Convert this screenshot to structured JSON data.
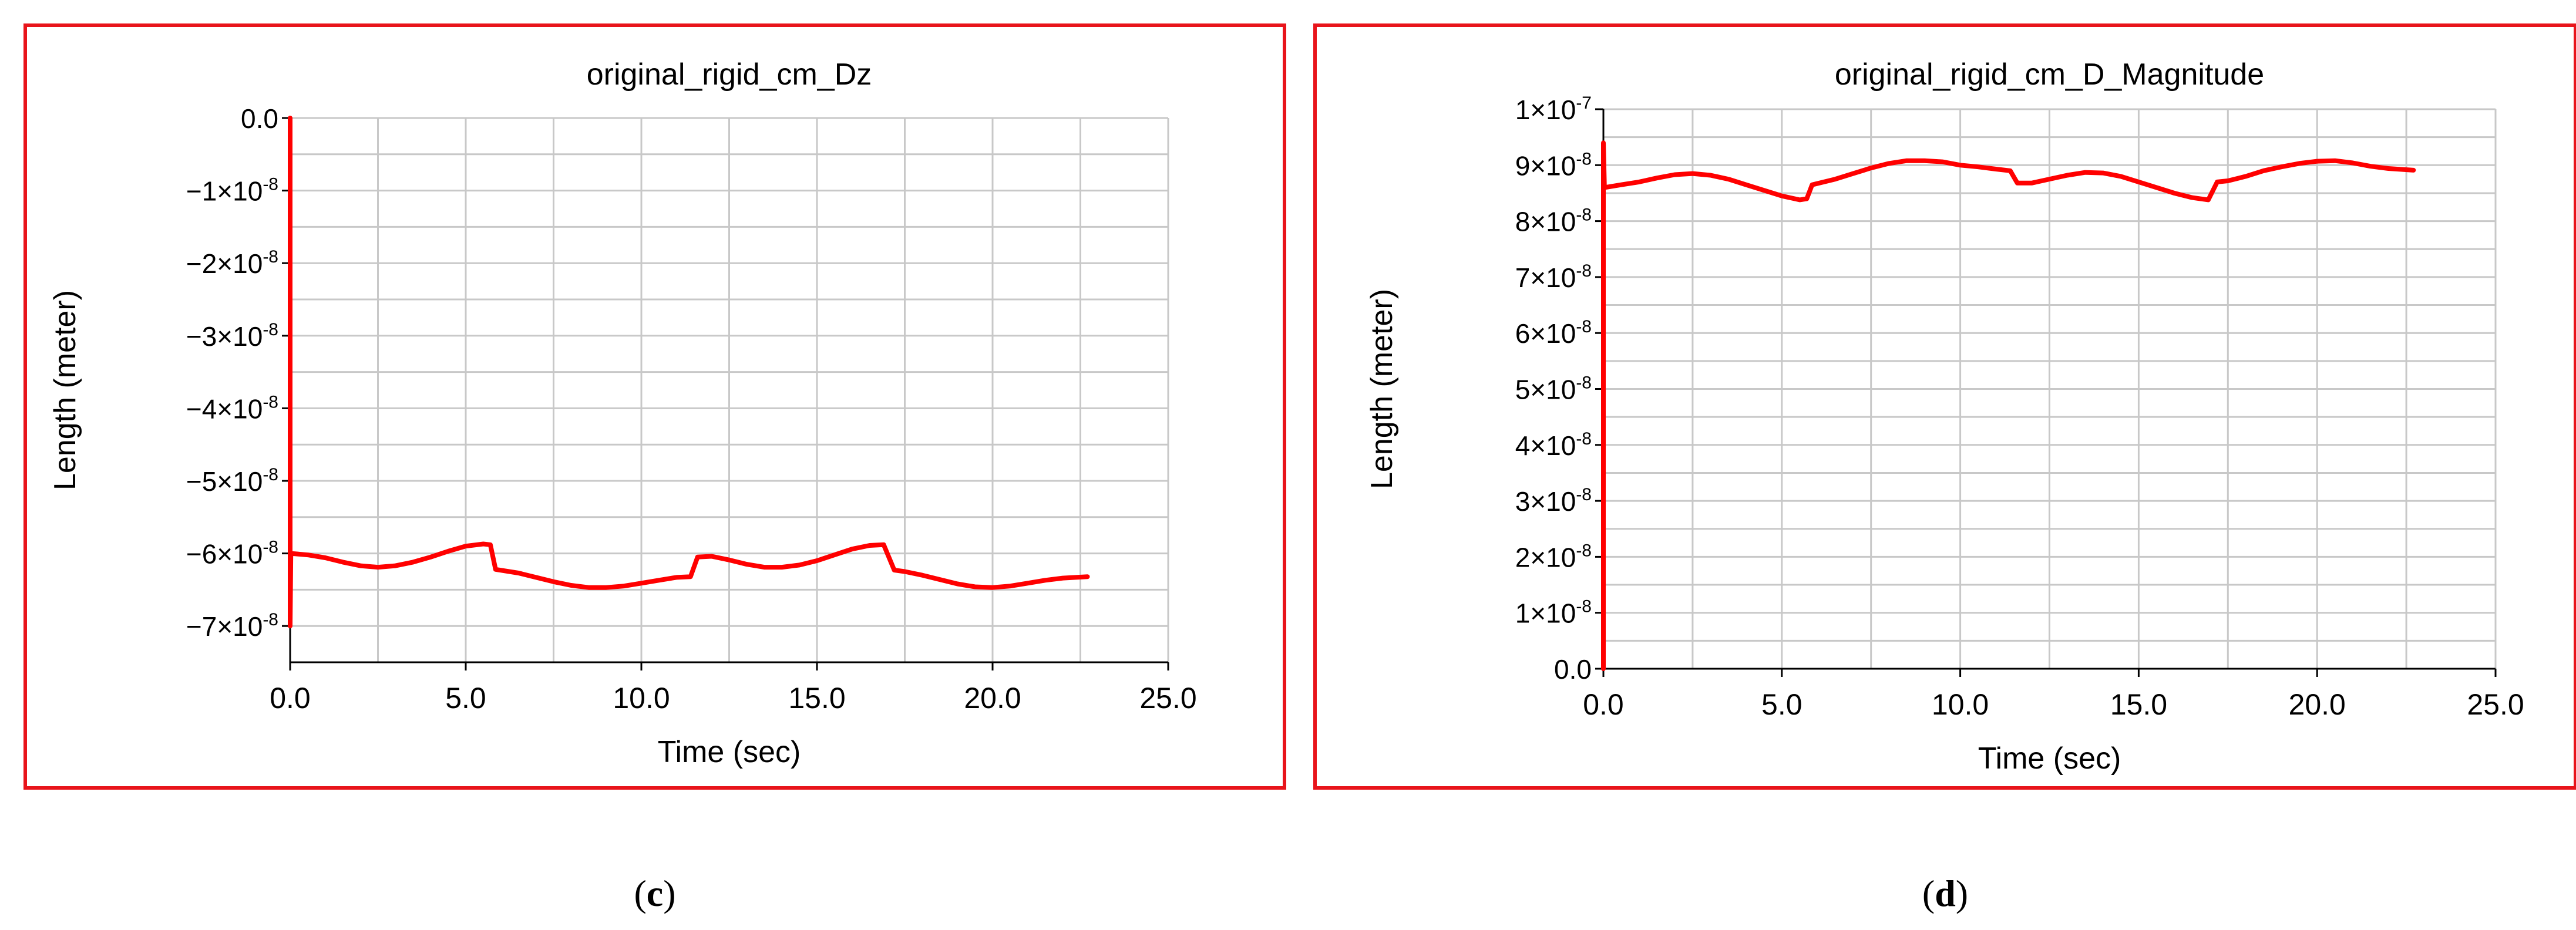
{
  "chart_data": [
    {
      "type": "line",
      "panel_label": "c",
      "title": "original_rigid_cm_Dz",
      "xlabel": "Time (sec)",
      "ylabel": "Length (meter)",
      "xlim": [
        0,
        25
      ],
      "ylim": [
        -7.5e-08,
        0
      ],
      "x_ticks": [
        0,
        5,
        10,
        15,
        20,
        25
      ],
      "x_tick_labels": [
        "0.0",
        "5.0",
        "10.0",
        "15.0",
        "20.0",
        "25.0"
      ],
      "y_ticks": [
        {
          "value": 0,
          "mantissa": "0.0",
          "exp": ""
        },
        {
          "value": -1e-08,
          "mantissa": "−1×10",
          "exp": "-8"
        },
        {
          "value": -2e-08,
          "mantissa": "−2×10",
          "exp": "-8"
        },
        {
          "value": -3e-08,
          "mantissa": "−3×10",
          "exp": "-8"
        },
        {
          "value": -4e-08,
          "mantissa": "−4×10",
          "exp": "-8"
        },
        {
          "value": -5e-08,
          "mantissa": "−5×10",
          "exp": "-8"
        },
        {
          "value": -6e-08,
          "mantissa": "−6×10",
          "exp": "-8"
        },
        {
          "value": -7e-08,
          "mantissa": "−7×10",
          "exp": "-8"
        }
      ],
      "grid": true,
      "series": [
        {
          "color": "#ff0000",
          "points": [
            [
              0,
              0
            ],
            [
              0,
              -7e-08
            ],
            [
              0.02,
              -6e-08
            ],
            [
              0.5,
              -6.02e-08
            ],
            [
              1.0,
              -6.06e-08
            ],
            [
              1.5,
              -6.12e-08
            ],
            [
              2.0,
              -6.17e-08
            ],
            [
              2.5,
              -6.19e-08
            ],
            [
              3.0,
              -6.17e-08
            ],
            [
              3.5,
              -6.12e-08
            ],
            [
              4.0,
              -6.05e-08
            ],
            [
              4.5,
              -5.97e-08
            ],
            [
              5.0,
              -5.9e-08
            ],
            [
              5.5,
              -5.87e-08
            ],
            [
              5.7,
              -5.88e-08
            ],
            [
              5.85,
              -6.22e-08
            ],
            [
              6.5,
              -6.27e-08
            ],
            [
              7.0,
              -6.33e-08
            ],
            [
              7.5,
              -6.39e-08
            ],
            [
              8.0,
              -6.44e-08
            ],
            [
              8.5,
              -6.47e-08
            ],
            [
              9.0,
              -6.47e-08
            ],
            [
              9.5,
              -6.45e-08
            ],
            [
              10.0,
              -6.41e-08
            ],
            [
              10.5,
              -6.37e-08
            ],
            [
              11.0,
              -6.33e-08
            ],
            [
              11.4,
              -6.32e-08
            ],
            [
              11.6,
              -6.05e-08
            ],
            [
              12.0,
              -6.04e-08
            ],
            [
              12.5,
              -6.09e-08
            ],
            [
              13.0,
              -6.15e-08
            ],
            [
              13.5,
              -6.19e-08
            ],
            [
              14.0,
              -6.19e-08
            ],
            [
              14.5,
              -6.16e-08
            ],
            [
              15.0,
              -6.1e-08
            ],
            [
              15.5,
              -6.02e-08
            ],
            [
              16.0,
              -5.94e-08
            ],
            [
              16.5,
              -5.89e-08
            ],
            [
              16.9,
              -5.88e-08
            ],
            [
              17.2,
              -6.23e-08
            ],
            [
              17.5,
              -6.25e-08
            ],
            [
              18.0,
              -6.3e-08
            ],
            [
              18.5,
              -6.36e-08
            ],
            [
              19.0,
              -6.42e-08
            ],
            [
              19.5,
              -6.46e-08
            ],
            [
              20.0,
              -6.47e-08
            ],
            [
              20.5,
              -6.45e-08
            ],
            [
              21.0,
              -6.41e-08
            ],
            [
              21.5,
              -6.37e-08
            ],
            [
              22.0,
              -6.34e-08
            ],
            [
              22.7,
              -6.32e-08
            ]
          ]
        }
      ]
    },
    {
      "type": "line",
      "panel_label": "d",
      "title": "original_rigid_cm_D_Magnitude",
      "xlabel": "Time (sec)",
      "ylabel": "Length (meter)",
      "xlim": [
        0,
        25
      ],
      "ylim": [
        0,
        1e-07
      ],
      "x_ticks": [
        0,
        5,
        10,
        15,
        20,
        25
      ],
      "x_tick_labels": [
        "0.0",
        "5.0",
        "10.0",
        "15.0",
        "20.0",
        "25.0"
      ],
      "y_ticks": [
        {
          "value": 0,
          "mantissa": "0.0",
          "exp": ""
        },
        {
          "value": 1e-08,
          "mantissa": "1×10",
          "exp": "-8"
        },
        {
          "value": 2e-08,
          "mantissa": "2×10",
          "exp": "-8"
        },
        {
          "value": 3e-08,
          "mantissa": "3×10",
          "exp": "-8"
        },
        {
          "value": 4e-08,
          "mantissa": "4×10",
          "exp": "-8"
        },
        {
          "value": 5e-08,
          "mantissa": "5×10",
          "exp": "-8"
        },
        {
          "value": 6e-08,
          "mantissa": "6×10",
          "exp": "-8"
        },
        {
          "value": 7e-08,
          "mantissa": "7×10",
          "exp": "-8"
        },
        {
          "value": 8e-08,
          "mantissa": "8×10",
          "exp": "-8"
        },
        {
          "value": 9e-08,
          "mantissa": "9×10",
          "exp": "-8"
        },
        {
          "value": 1e-07,
          "mantissa": "1×10",
          "exp": "-7"
        }
      ],
      "grid": true,
      "series": [
        {
          "color": "#ff0000",
          "points": [
            [
              0,
              0
            ],
            [
              0,
              9.4e-08
            ],
            [
              0.03,
              8.6e-08
            ],
            [
              0.5,
              8.65e-08
            ],
            [
              1.0,
              8.7e-08
            ],
            [
              1.5,
              8.77e-08
            ],
            [
              2.0,
              8.83e-08
            ],
            [
              2.5,
              8.85e-08
            ],
            [
              3.0,
              8.82e-08
            ],
            [
              3.5,
              8.75e-08
            ],
            [
              4.0,
              8.65e-08
            ],
            [
              4.5,
              8.55e-08
            ],
            [
              5.0,
              8.45e-08
            ],
            [
              5.5,
              8.38e-08
            ],
            [
              5.7,
              8.4e-08
            ],
            [
              5.85,
              8.65e-08
            ],
            [
              6.5,
              8.75e-08
            ],
            [
              7.0,
              8.85e-08
            ],
            [
              7.5,
              8.95e-08
            ],
            [
              8.0,
              9.03e-08
            ],
            [
              8.5,
              9.08e-08
            ],
            [
              9.0,
              9.08e-08
            ],
            [
              9.5,
              9.06e-08
            ],
            [
              10.0,
              9e-08
            ],
            [
              10.5,
              8.97e-08
            ],
            [
              11.0,
              8.93e-08
            ],
            [
              11.4,
              8.9e-08
            ],
            [
              11.6,
              8.68e-08
            ],
            [
              12.0,
              8.68e-08
            ],
            [
              12.5,
              8.75e-08
            ],
            [
              13.0,
              8.82e-08
            ],
            [
              13.5,
              8.87e-08
            ],
            [
              14.0,
              8.86e-08
            ],
            [
              14.5,
              8.8e-08
            ],
            [
              15.0,
              8.7e-08
            ],
            [
              15.5,
              8.6e-08
            ],
            [
              16.0,
              8.5e-08
            ],
            [
              16.5,
              8.42e-08
            ],
            [
              16.95,
              8.38e-08
            ],
            [
              17.2,
              8.7e-08
            ],
            [
              17.5,
              8.72e-08
            ],
            [
              18.0,
              8.8e-08
            ],
            [
              18.5,
              8.9e-08
            ],
            [
              19.0,
              8.97e-08
            ],
            [
              19.5,
              9.03e-08
            ],
            [
              20.0,
              9.07e-08
            ],
            [
              20.5,
              9.08e-08
            ],
            [
              21.0,
              9.04e-08
            ],
            [
              21.5,
              8.98e-08
            ],
            [
              22.0,
              8.94e-08
            ],
            [
              22.7,
              8.91e-08
            ]
          ]
        }
      ]
    }
  ]
}
